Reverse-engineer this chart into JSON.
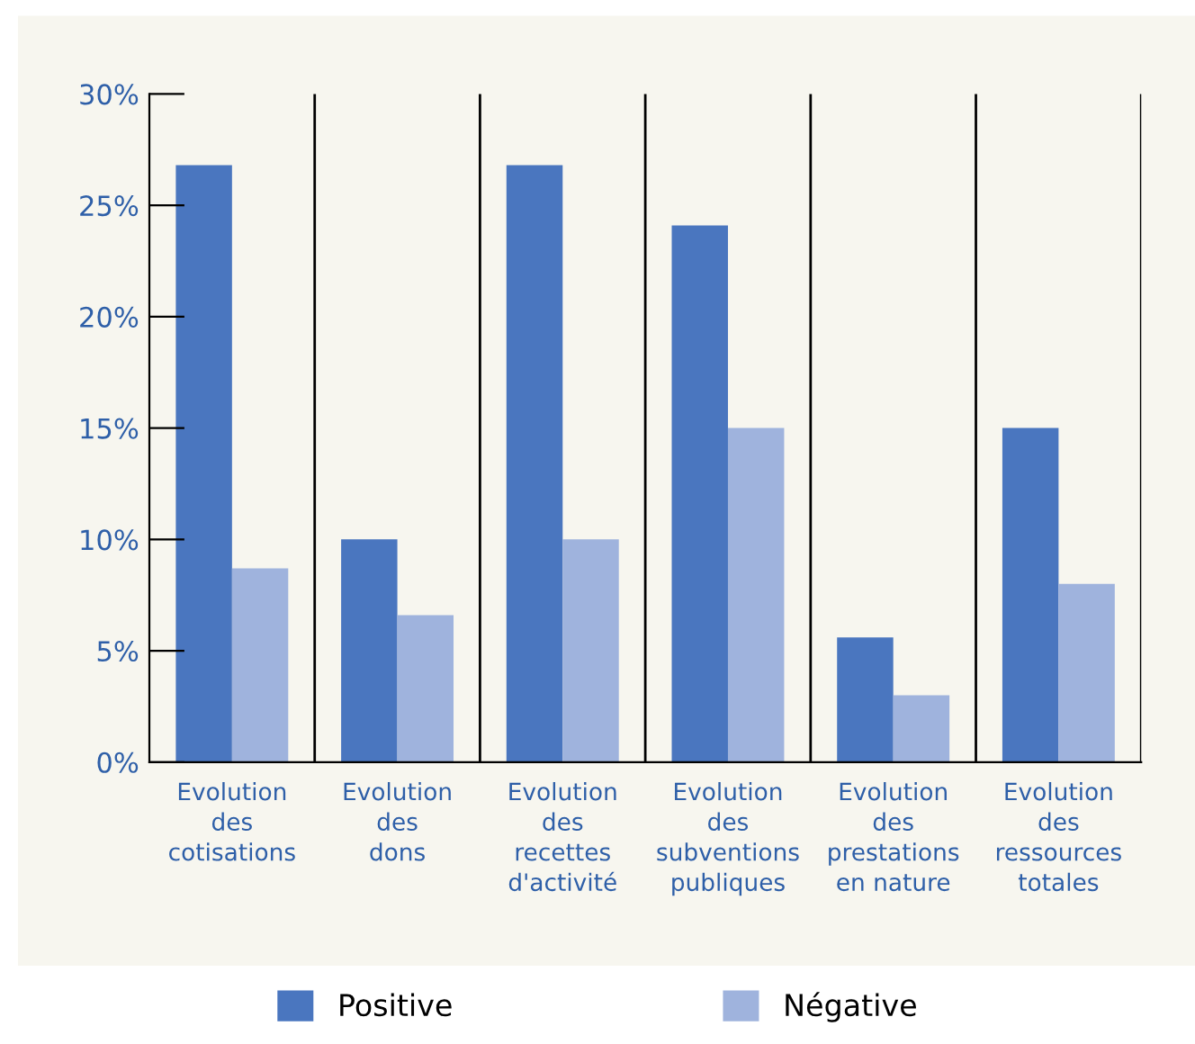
{
  "chart_data": {
    "type": "bar",
    "categories": [
      "Evolution\ndes\ncotisations",
      "Evolution\ndes\ndons",
      "Evolution\ndes\nrecettes\nd'activité",
      "Evolution\ndes\nsubventions\npubliques",
      "Evolution\ndes\nprestations\nen nature",
      "Evolution\ndes\nressources\ntotales"
    ],
    "series": [
      {
        "name": "Positive",
        "color": "#4a76bf",
        "values": [
          26.8,
          10,
          26.8,
          24.1,
          5.6,
          15
        ]
      },
      {
        "name": "Négative",
        "color": "#9fb3dd",
        "values": [
          8.7,
          6.6,
          10,
          15,
          3.0,
          8
        ]
      }
    ],
    "ylim": [
      0,
      30
    ],
    "yticks": [
      {
        "value": 0,
        "label": "0%"
      },
      {
        "value": 5,
        "label": "5%"
      },
      {
        "value": 10,
        "label": "10%"
      },
      {
        "value": 15,
        "label": "15%"
      },
      {
        "value": 20,
        "label": "20%"
      },
      {
        "value": 25,
        "label": "25%"
      },
      {
        "value": 30,
        "label": "30%"
      }
    ],
    "grid": false,
    "legend": "bottom"
  }
}
